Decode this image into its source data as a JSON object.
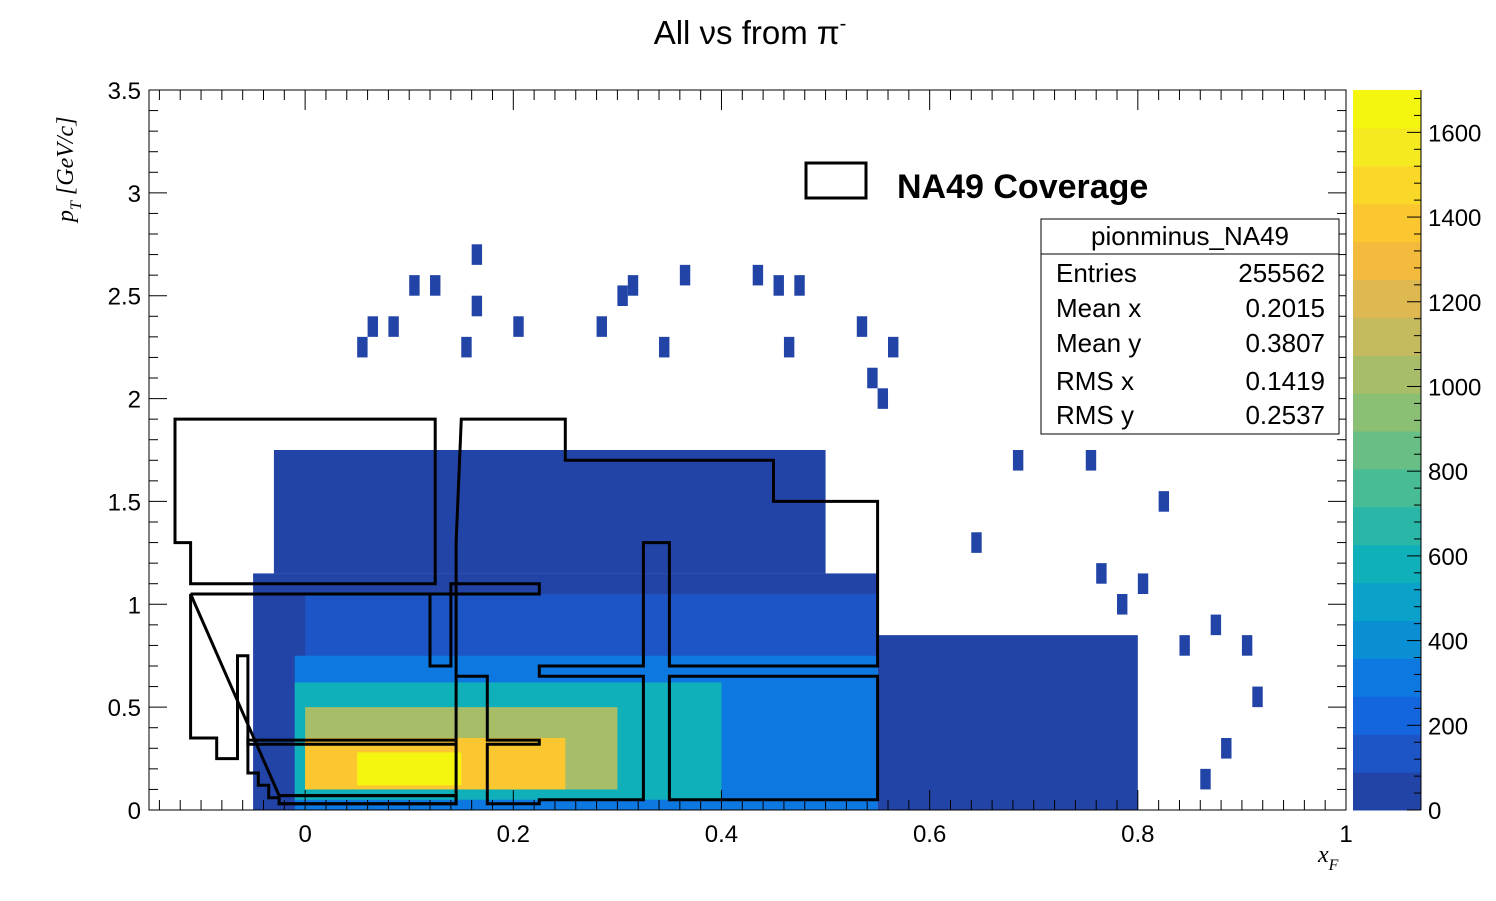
{
  "chart_data": {
    "type": "heatmap",
    "title": {
      "main": "All νs from π",
      "sup": "-"
    },
    "xlabel": {
      "main": "x",
      "sub": "F"
    },
    "ylabel": {
      "main": "p",
      "sub": "T",
      "rest": " [GeV/c]"
    },
    "xlim": [
      -0.15,
      1.0
    ],
    "ylim": [
      0,
      3.5
    ],
    "x_ticks": [
      0,
      0.2,
      0.4,
      0.6,
      0.8,
      1
    ],
    "x_tick_labels": [
      "0",
      "0.2",
      "0.4",
      "0.6",
      "0.8",
      "1"
    ],
    "y_ticks": [
      0,
      0.5,
      1,
      1.5,
      2,
      2.5,
      3,
      3.5
    ],
    "y_tick_labels": [
      "0",
      "0.5",
      "1",
      "1.5",
      "2",
      "2.5",
      "3",
      "3.5"
    ],
    "colorbar": {
      "zlim": [
        0,
        1700
      ],
      "ticks": [
        0,
        200,
        400,
        600,
        800,
        1000,
        1200,
        1400,
        1600
      ],
      "tick_labels": [
        "0",
        "200",
        "400",
        "600",
        "800",
        "1000",
        "1200",
        "1400",
        "1600"
      ],
      "palette": [
        "#2244a6",
        "#1d55c6",
        "#1466df",
        "#0d78e0",
        "#0a8fd5",
        "#0aa2cb",
        "#10b0bb",
        "#2bb7a8",
        "#48bc94",
        "#68be84",
        "#8bbf73",
        "#a8bd68",
        "#c5ba5e",
        "#deb850",
        "#f2bb3d",
        "#fbc730",
        "#f9d827",
        "#f5ea1f",
        "#f5f60f"
      ]
    },
    "grid": false,
    "density_regions": [
      {
        "x": [
          -0.05,
          0.55
        ],
        "y": [
          0.0,
          1.15
        ],
        "z": 40
      },
      {
        "x": [
          0.55,
          0.8
        ],
        "y": [
          0.0,
          0.85
        ],
        "z": 18
      },
      {
        "x": [
          -0.03,
          0.5
        ],
        "y": [
          1.15,
          1.75
        ],
        "z": 8
      },
      {
        "x": [
          0.0,
          0.55
        ],
        "y": [
          0.7,
          1.05
        ],
        "z": 160
      },
      {
        "x": [
          -0.01,
          0.55
        ],
        "y": [
          0.0,
          0.75
        ],
        "z": 320
      },
      {
        "x": [
          -0.01,
          0.4
        ],
        "y": [
          0.05,
          0.62
        ],
        "z": 600
      },
      {
        "x": [
          0.0,
          0.3
        ],
        "y": [
          0.1,
          0.5
        ],
        "z": 1000
      },
      {
        "x": [
          0.0,
          0.25
        ],
        "y": [
          0.1,
          0.35
        ],
        "z": 1400
      },
      {
        "x": [
          0.05,
          0.15
        ],
        "y": [
          0.12,
          0.28
        ],
        "z": 1650
      }
    ],
    "scattered_bins": [
      [
        0.16,
        2.65
      ],
      [
        0.1,
        2.5
      ],
      [
        0.12,
        2.5
      ],
      [
        0.31,
        2.5
      ],
      [
        0.3,
        2.45
      ],
      [
        0.36,
        2.55
      ],
      [
        0.43,
        2.55
      ],
      [
        0.45,
        2.5
      ],
      [
        0.47,
        2.5
      ],
      [
        0.16,
        2.4
      ],
      [
        0.06,
        2.3
      ],
      [
        0.08,
        2.3
      ],
      [
        0.2,
        2.3
      ],
      [
        0.28,
        2.3
      ],
      [
        0.53,
        2.3
      ],
      [
        0.05,
        2.2
      ],
      [
        0.15,
        2.2
      ],
      [
        0.34,
        2.2
      ],
      [
        0.46,
        2.2
      ],
      [
        0.56,
        2.2
      ],
      [
        0.54,
        2.05
      ],
      [
        0.55,
        1.95
      ],
      [
        0.68,
        1.65
      ],
      [
        0.75,
        1.65
      ],
      [
        0.64,
        1.25
      ],
      [
        0.82,
        1.45
      ],
      [
        0.76,
        1.1
      ],
      [
        0.8,
        1.05
      ],
      [
        0.78,
        0.95
      ],
      [
        0.87,
        0.85
      ],
      [
        0.84,
        0.75
      ],
      [
        0.9,
        0.75
      ],
      [
        0.91,
        0.5
      ],
      [
        0.88,
        0.25
      ],
      [
        0.86,
        0.1
      ],
      [
        0.72,
        0.05
      ]
    ],
    "overlay_polygons": [
      {
        "name": "NA49 Coverage",
        "points": [
          [
            -0.125,
            1.9
          ],
          [
            0.125,
            1.9
          ],
          [
            0.125,
            1.1
          ],
          [
            -0.11,
            1.1
          ],
          [
            -0.11,
            1.3
          ],
          [
            -0.125,
            1.3
          ]
        ]
      },
      {
        "points": [
          [
            0.15,
            1.9
          ],
          [
            0.25,
            1.9
          ],
          [
            0.25,
            1.7
          ],
          [
            0.45,
            1.7
          ],
          [
            0.45,
            1.5
          ],
          [
            0.55,
            1.5
          ],
          [
            0.55,
            0.7
          ],
          [
            0.35,
            0.7
          ],
          [
            0.35,
            1.3
          ],
          [
            0.325,
            1.3
          ],
          [
            0.325,
            0.7
          ],
          [
            0.225,
            0.7
          ],
          [
            0.225,
            0.65
          ],
          [
            0.325,
            0.65
          ],
          [
            0.325,
            0.05
          ],
          [
            0.225,
            0.05
          ],
          [
            0.225,
            0.03
          ],
          [
            0.175,
            0.03
          ],
          [
            0.175,
            0.32
          ],
          [
            0.225,
            0.32
          ],
          [
            0.225,
            0.34
          ],
          [
            0.175,
            0.34
          ],
          [
            0.175,
            0.65
          ],
          [
            0.145,
            0.65
          ],
          [
            0.145,
            0.34
          ],
          [
            -0.055,
            0.34
          ],
          [
            -0.055,
            0.32
          ],
          [
            0.145,
            0.32
          ],
          [
            0.145,
            0.07
          ],
          [
            -0.025,
            0.07
          ],
          [
            -0.025,
            0.03
          ],
          [
            0.145,
            0.03
          ],
          [
            0.145,
            1.3
          ]
        ]
      },
      {
        "points": [
          [
            -0.11,
            1.05
          ],
          [
            0.12,
            1.05
          ],
          [
            0.12,
            0.7
          ],
          [
            0.14,
            0.7
          ],
          [
            0.14,
            1.1
          ],
          [
            0.225,
            1.1
          ],
          [
            0.225,
            1.05
          ],
          [
            0.14,
            1.05
          ]
        ]
      },
      {
        "points": [
          [
            -0.11,
            1.05
          ],
          [
            -0.11,
            0.35
          ],
          [
            -0.085,
            0.35
          ],
          [
            -0.085,
            0.25
          ],
          [
            -0.065,
            0.25
          ],
          [
            -0.065,
            0.75
          ],
          [
            -0.055,
            0.75
          ],
          [
            -0.055,
            0.18
          ],
          [
            -0.045,
            0.18
          ],
          [
            -0.045,
            0.12
          ],
          [
            -0.035,
            0.12
          ],
          [
            -0.035,
            0.06
          ],
          [
            -0.025,
            0.06
          ],
          [
            -0.025,
            0.03
          ],
          [
            0.145,
            0.03
          ],
          [
            0.145,
            0.07
          ],
          [
            -0.025,
            0.07
          ]
        ]
      },
      {
        "points": [
          [
            0.35,
            0.65
          ],
          [
            0.55,
            0.65
          ],
          [
            0.55,
            0.05
          ],
          [
            0.35,
            0.05
          ]
        ]
      }
    ],
    "legend": {
      "position": "top",
      "entries": [
        "NA49 Coverage"
      ]
    },
    "stats": {
      "title": "pionminus_NA49",
      "rows": [
        {
          "label": "Entries",
          "value": "255562"
        },
        {
          "label": "Mean x",
          "value": "0.2015"
        },
        {
          "label": "Mean y",
          "value": "0.3807"
        },
        {
          "label": "RMS x",
          "value": "0.1419"
        },
        {
          "label": "RMS y",
          "value": "0.2537"
        }
      ]
    }
  }
}
